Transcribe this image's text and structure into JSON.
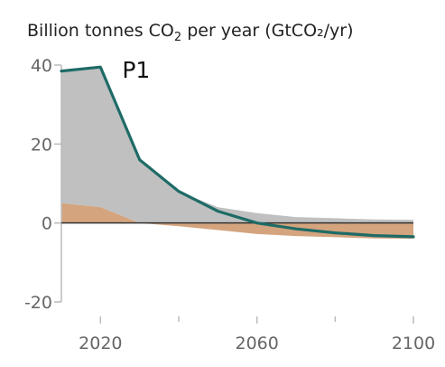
{
  "chart_data": {
    "type": "area",
    "title": "Billion tonnes CO₂ per year (GtCO₂/yr)",
    "title_parts": {
      "prefix": "Billion tonnes CO",
      "subscript": "2",
      "suffix": " per year (GtCO₂/yr)"
    },
    "xlabel": "",
    "ylabel": "",
    "xlim": [
      2010,
      2100
    ],
    "ylim": [
      -20,
      40
    ],
    "x_ticks": [
      2020,
      2060,
      2100
    ],
    "x_minor_ticks": [
      2040,
      2080
    ],
    "y_ticks": [
      40,
      20,
      0,
      -20
    ],
    "grid": false,
    "x": [
      2010,
      2020,
      2030,
      2040,
      2050,
      2060,
      2070,
      2080,
      2090,
      2100
    ],
    "series": [
      {
        "name": "P1",
        "kind": "line",
        "color": "#1e6b67",
        "values": [
          38.5,
          39.5,
          16,
          8,
          3,
          0,
          -1.5,
          -2.5,
          -3.2,
          -3.5
        ]
      },
      {
        "kind": "area",
        "color": "#c0c0c0",
        "upper": [
          38.5,
          39.5,
          16,
          8,
          4,
          2.5,
          1.5,
          1.2,
          0.9,
          0.8
        ],
        "lower": [
          5,
          4,
          0,
          0,
          0,
          0,
          0,
          0,
          0,
          0
        ]
      },
      {
        "kind": "area",
        "color": "#d4a47e",
        "upper": [
          5,
          4,
          0,
          0,
          0,
          0,
          0,
          0,
          0,
          0
        ],
        "lower": [
          0,
          0,
          0,
          -0.8,
          -1.8,
          -2.8,
          -3.3,
          -3.6,
          -3.9,
          -4.0
        ]
      }
    ]
  }
}
